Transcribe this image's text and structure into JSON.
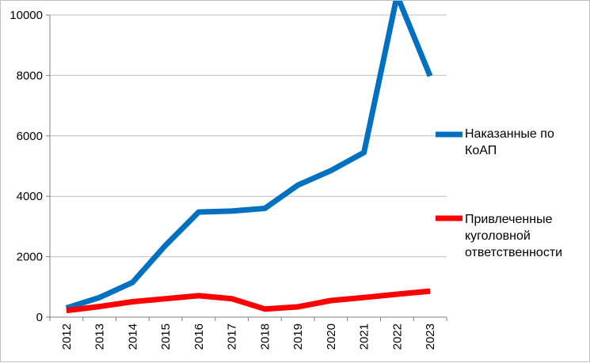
{
  "chart_data": {
    "type": "line",
    "title": "",
    "xlabel": "",
    "ylabel": "",
    "categories": [
      "2012",
      "2013",
      "2014",
      "2015",
      "2016",
      "2017",
      "2018",
      "2019",
      "2020",
      "2021",
      "2022",
      "2023"
    ],
    "ylim": [
      0,
      10000
    ],
    "yticks": [
      "0",
      "2000",
      "4000",
      "6000",
      "8000",
      "10000"
    ],
    "grid": "horizontal",
    "legend_position": "right",
    "series": [
      {
        "name": "Наказанные по КоАП",
        "name_lines": [
          "Наказанные по",
          "КоАП"
        ],
        "color": "#0070c0",
        "values": [
          300,
          650,
          1150,
          2380,
          3480,
          3510,
          3600,
          4370,
          4850,
          5450,
          10650,
          7980
        ]
      },
      {
        "name": "Привлеченные куголовной ответственности",
        "name_lines": [
          "Привлеченные",
          "куголовной",
          "ответственности"
        ],
        "color": "#ff0000",
        "values": [
          220,
          350,
          510,
          610,
          710,
          610,
          270,
          340,
          550,
          650,
          760,
          860
        ]
      }
    ]
  }
}
